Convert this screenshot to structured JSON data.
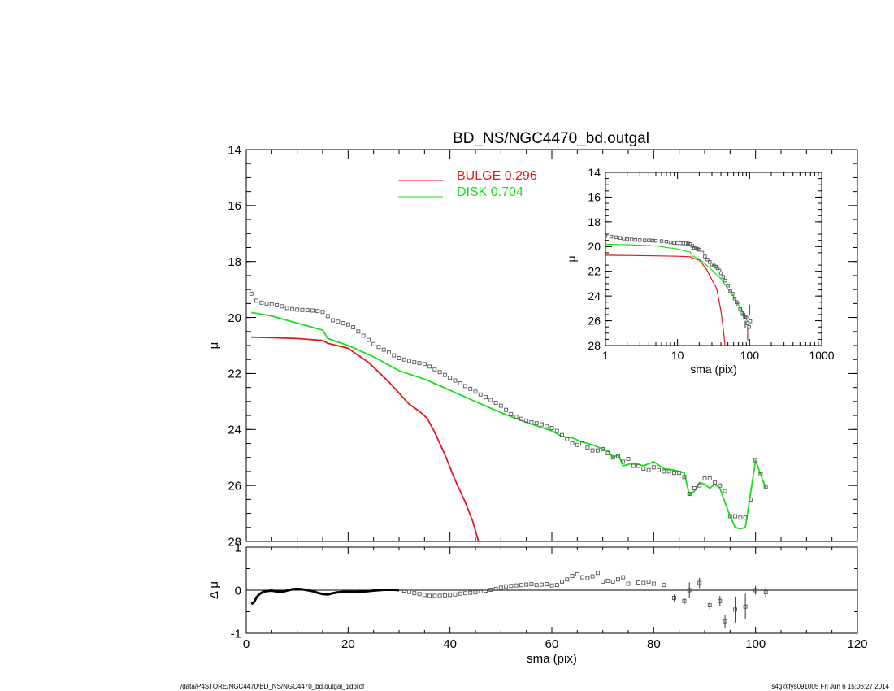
{
  "title": "BD_NS/NGC4470_bd.outgal",
  "footer": {
    "left": "/data/P4STORE/NGC4470/BD_NS/NGC4470_bd.outgal_1dprof",
    "right": "s4g@fys091005  Fri Jun  6 15:06:27 2014"
  },
  "colors": {
    "bulge": "#e8141e",
    "disk": "#18e018",
    "data": "#555555",
    "axis": "#000000"
  },
  "chart_data": [
    {
      "id": "main",
      "type": "line",
      "xlabel": "",
      "ylabel": "μ",
      "xlim": [
        0,
        120
      ],
      "ylim": [
        28,
        14
      ],
      "xticks": [
        0,
        20,
        40,
        60,
        80,
        100,
        120
      ],
      "yticks": [
        14,
        16,
        18,
        20,
        22,
        24,
        26,
        28
      ],
      "legend": [
        {
          "label": "BULGE  0.296",
          "color": "#e8141e"
        },
        {
          "label": "DISK  0.704",
          "color": "#18e018"
        }
      ],
      "series": [
        {
          "name": "BULGE  0.296",
          "kind": "line",
          "color": "#e8141e",
          "x": [
            1,
            5,
            10,
            15,
            16,
            20,
            24,
            28,
            30,
            32,
            34,
            35.5,
            37,
            39,
            41,
            43,
            44.5,
            45.6
          ],
          "y": [
            20.7,
            20.72,
            20.75,
            20.82,
            20.92,
            21.1,
            21.6,
            22.3,
            22.7,
            23.1,
            23.35,
            23.6,
            24.1,
            24.9,
            25.8,
            26.6,
            27.3,
            28.0
          ]
        },
        {
          "name": "DISK  0.704",
          "kind": "line",
          "color": "#18e018",
          "x": [
            1,
            5,
            10,
            15,
            16,
            20,
            25,
            30,
            35,
            40,
            45,
            50,
            55,
            60,
            62,
            64,
            66,
            68,
            70,
            71,
            72,
            73,
            74,
            75,
            76,
            78,
            80,
            82,
            84,
            86,
            87,
            88,
            89,
            90,
            91,
            92,
            93,
            94,
            95,
            96,
            97,
            98,
            99,
            100,
            101,
            102
          ],
          "y": [
            19.82,
            19.95,
            20.2,
            20.45,
            20.75,
            21.0,
            21.4,
            21.9,
            22.2,
            22.6,
            23.0,
            23.4,
            23.75,
            24.05,
            24.25,
            24.3,
            24.45,
            24.55,
            24.7,
            24.75,
            25.0,
            24.9,
            25.3,
            25.25,
            25.2,
            25.3,
            25.15,
            25.4,
            25.45,
            25.55,
            26.35,
            26.2,
            25.9,
            25.95,
            26.1,
            25.95,
            26.1,
            26.6,
            27.1,
            27.5,
            27.55,
            27.5,
            26.3,
            25.1,
            25.6,
            26.1
          ]
        },
        {
          "name": "",
          "kind": "markers",
          "color": "#555555",
          "x": [
            1,
            2,
            3,
            4,
            5,
            6,
            7,
            8,
            9,
            10,
            11,
            12,
            13,
            14,
            15,
            16,
            17,
            18,
            19,
            20,
            21,
            22,
            23,
            24,
            25,
            26,
            27,
            28,
            29,
            30,
            31,
            32,
            33,
            34,
            35,
            36,
            37,
            38,
            39,
            40,
            41,
            42,
            43,
            44,
            45,
            46,
            47,
            48,
            49,
            50,
            51,
            52,
            53,
            54,
            55,
            56,
            57,
            58,
            59,
            60,
            61,
            62,
            63,
            64,
            65,
            66,
            67,
            68,
            69,
            70,
            71,
            72,
            73,
            74,
            75,
            76,
            77,
            78,
            79,
            80,
            81,
            82,
            83,
            84,
            85,
            86,
            87,
            88,
            89,
            90,
            91,
            92,
            93,
            94,
            95,
            96,
            97,
            98,
            99,
            100,
            101,
            102
          ],
          "y": [
            19.15,
            19.4,
            19.47,
            19.5,
            19.53,
            19.56,
            19.6,
            19.66,
            19.7,
            19.72,
            19.73,
            19.74,
            19.75,
            19.77,
            19.8,
            19.95,
            20.1,
            20.15,
            20.2,
            20.25,
            20.35,
            20.5,
            20.65,
            20.8,
            20.95,
            21.05,
            21.15,
            21.25,
            21.35,
            21.45,
            21.5,
            21.55,
            21.6,
            21.63,
            21.66,
            21.75,
            21.85,
            21.95,
            22.05,
            22.15,
            22.25,
            22.35,
            22.45,
            22.55,
            22.65,
            22.75,
            22.85,
            22.95,
            23.05,
            23.15,
            23.3,
            23.45,
            23.55,
            23.62,
            23.68,
            23.74,
            23.78,
            23.82,
            23.88,
            23.95,
            24.05,
            24.2,
            24.35,
            24.5,
            24.55,
            24.5,
            24.65,
            24.75,
            24.75,
            24.7,
            24.85,
            25.0,
            24.95,
            25.15,
            25.05,
            25.3,
            25.3,
            25.4,
            25.45,
            25.35,
            25.45,
            25.5,
            25.5,
            25.55,
            25.55,
            25.7,
            26.3,
            26.1,
            26.0,
            25.75,
            25.75,
            25.9,
            26.0,
            26.2,
            27.1,
            27.1,
            27.15,
            27.15,
            26.5,
            25.1,
            25.6,
            26.05
          ]
        }
      ]
    },
    {
      "id": "residual",
      "type": "scatter",
      "xlabel": "sma (pix)",
      "ylabel": "Δ μ",
      "xlim": [
        0,
        120
      ],
      "ylim": [
        -1,
        1
      ],
      "xticks": [
        0,
        20,
        40,
        60,
        80,
        100,
        120
      ],
      "yticks": [
        1,
        0,
        -1
      ],
      "zero_line": true,
      "series": [
        {
          "name": "",
          "kind": "line",
          "color": "#000000",
          "x": [
            1,
            1.5,
            2,
            2.5,
            3,
            3.5,
            4,
            5,
            6,
            7,
            8,
            9,
            10,
            11,
            12,
            13,
            14,
            15,
            16,
            17,
            18,
            19,
            20,
            21,
            22,
            23,
            24,
            25,
            26,
            27,
            28,
            29,
            30
          ],
          "y": [
            -0.32,
            -0.28,
            -0.17,
            -0.1,
            -0.06,
            -0.03,
            -0.02,
            -0.01,
            -0.03,
            -0.04,
            -0.01,
            0.02,
            0.03,
            0.02,
            0.0,
            -0.02,
            -0.06,
            -0.09,
            -0.1,
            -0.07,
            -0.05,
            -0.04,
            -0.04,
            -0.04,
            -0.04,
            -0.03,
            -0.02,
            -0.01,
            0.0,
            0.01,
            0.01,
            0.01,
            0.0
          ]
        },
        {
          "name": "",
          "kind": "markers",
          "color": "#555555",
          "x": [
            31,
            32,
            33,
            34,
            35,
            36,
            37,
            38,
            39,
            40,
            41,
            42,
            43,
            44,
            45,
            46,
            47,
            48,
            49,
            50,
            51,
            52,
            53,
            54,
            55,
            56,
            57,
            58,
            59,
            60,
            61,
            62,
            63,
            64,
            65,
            66,
            67,
            68,
            69,
            70,
            71,
            72,
            73,
            74,
            75,
            77,
            78,
            79,
            80,
            82,
            84,
            86,
            87,
            89,
            91,
            93,
            94,
            96,
            98,
            100,
            102
          ],
          "y": [
            -0.01,
            -0.04,
            -0.07,
            -0.09,
            -0.11,
            -0.13,
            -0.13,
            -0.13,
            -0.12,
            -0.11,
            -0.1,
            -0.08,
            -0.07,
            -0.06,
            -0.05,
            -0.03,
            -0.01,
            0.01,
            0.03,
            0.06,
            0.09,
            0.1,
            0.11,
            0.12,
            0.13,
            0.14,
            0.12,
            0.13,
            0.14,
            0.11,
            0.12,
            0.2,
            0.25,
            0.33,
            0.37,
            0.3,
            0.28,
            0.32,
            0.4,
            0.2,
            0.22,
            0.2,
            0.25,
            0.3,
            0.15,
            0.18,
            0.17,
            0.2,
            0.15,
            0.12,
            -0.18,
            -0.25,
            0.0,
            0.17,
            -0.35,
            -0.25,
            -0.72,
            -0.45,
            -0.38,
            0.0,
            -0.05
          ]
        }
      ],
      "error_bars": [
        {
          "x": 84,
          "y": -0.18,
          "err": 0.08
        },
        {
          "x": 86,
          "y": -0.25,
          "err": 0.08
        },
        {
          "x": 87,
          "y": 0.0,
          "err": 0.18
        },
        {
          "x": 89,
          "y": 0.17,
          "err": 0.12
        },
        {
          "x": 91,
          "y": -0.35,
          "err": 0.1
        },
        {
          "x": 93,
          "y": -0.25,
          "err": 0.12
        },
        {
          "x": 94,
          "y": -0.72,
          "err": 0.15
        },
        {
          "x": 96,
          "y": -0.45,
          "err": 0.3
        },
        {
          "x": 98,
          "y": -0.38,
          "err": 0.3
        },
        {
          "x": 100,
          "y": 0.0,
          "err": 0.1
        },
        {
          "x": 102,
          "y": -0.05,
          "err": 0.12
        }
      ]
    },
    {
      "id": "inset",
      "type": "line",
      "xlabel": "sma (pix)",
      "ylabel": "μ",
      "xscale": "log",
      "xlim": [
        1,
        1000
      ],
      "ylim": [
        28,
        14
      ],
      "xticks": [
        1,
        10,
        100,
        1000
      ],
      "xticklabels": [
        "1",
        "10",
        "100",
        "1000"
      ],
      "yticks": [
        14,
        16,
        18,
        20,
        22,
        24,
        26,
        28
      ],
      "series": [
        {
          "name": "",
          "kind": "line",
          "color": "#e8141e",
          "x": [
            1,
            2,
            5,
            10,
            15,
            16,
            20,
            25,
            30,
            35,
            40,
            43,
            45.6
          ],
          "y": [
            20.7,
            20.72,
            20.75,
            20.78,
            20.82,
            20.92,
            21.1,
            21.8,
            22.7,
            23.4,
            25.2,
            26.6,
            28.0
          ]
        },
        {
          "name": "",
          "kind": "line",
          "color": "#18e018",
          "x": [
            1,
            2,
            5,
            10,
            15,
            16,
            20,
            30,
            40,
            50,
            60,
            70,
            80,
            90,
            100
          ],
          "y": [
            19.82,
            19.85,
            19.95,
            20.2,
            20.45,
            20.75,
            21.0,
            21.9,
            22.6,
            23.4,
            24.05,
            24.7,
            25.2,
            25.9,
            26.2
          ]
        },
        {
          "name": "",
          "kind": "markers",
          "color": "#555555",
          "x": [
            1,
            1.2,
            1.4,
            1.6,
            1.8,
            2,
            2.3,
            2.6,
            3,
            3.5,
            4,
            4.5,
            5,
            6,
            7,
            8,
            9,
            10,
            11,
            12,
            13,
            14,
            15,
            16,
            17,
            18,
            19,
            20,
            22,
            24,
            26,
            28,
            30,
            32,
            34,
            36,
            38,
            40,
            43,
            46,
            50,
            54,
            58,
            62,
            66,
            70,
            74,
            78,
            82,
            86,
            90,
            94,
            98,
            102
          ],
          "y": [
            19.15,
            19.2,
            19.25,
            19.3,
            19.35,
            19.4,
            19.43,
            19.46,
            19.47,
            19.5,
            19.5,
            19.52,
            19.53,
            19.56,
            19.6,
            19.66,
            19.7,
            19.72,
            19.73,
            19.74,
            19.75,
            19.77,
            19.8,
            19.95,
            20.1,
            20.15,
            20.2,
            20.25,
            20.5,
            20.8,
            21.05,
            21.25,
            21.45,
            21.55,
            21.63,
            21.75,
            21.95,
            22.15,
            22.45,
            22.75,
            23.15,
            23.62,
            23.82,
            24.2,
            24.5,
            24.7,
            25.05,
            25.4,
            25.5,
            25.7,
            25.75,
            26.2,
            26.5,
            26.05
          ]
        }
      ],
      "error_bars": [
        {
          "x": 87,
          "y": 26.3,
          "err": 0.3
        },
        {
          "x": 94,
          "y": 27.1,
          "err": 0.5
        },
        {
          "x": 98,
          "y": 27.1,
          "err": 0.7
        },
        {
          "x": 100,
          "y": 25.1,
          "err": 0.4
        }
      ]
    }
  ]
}
